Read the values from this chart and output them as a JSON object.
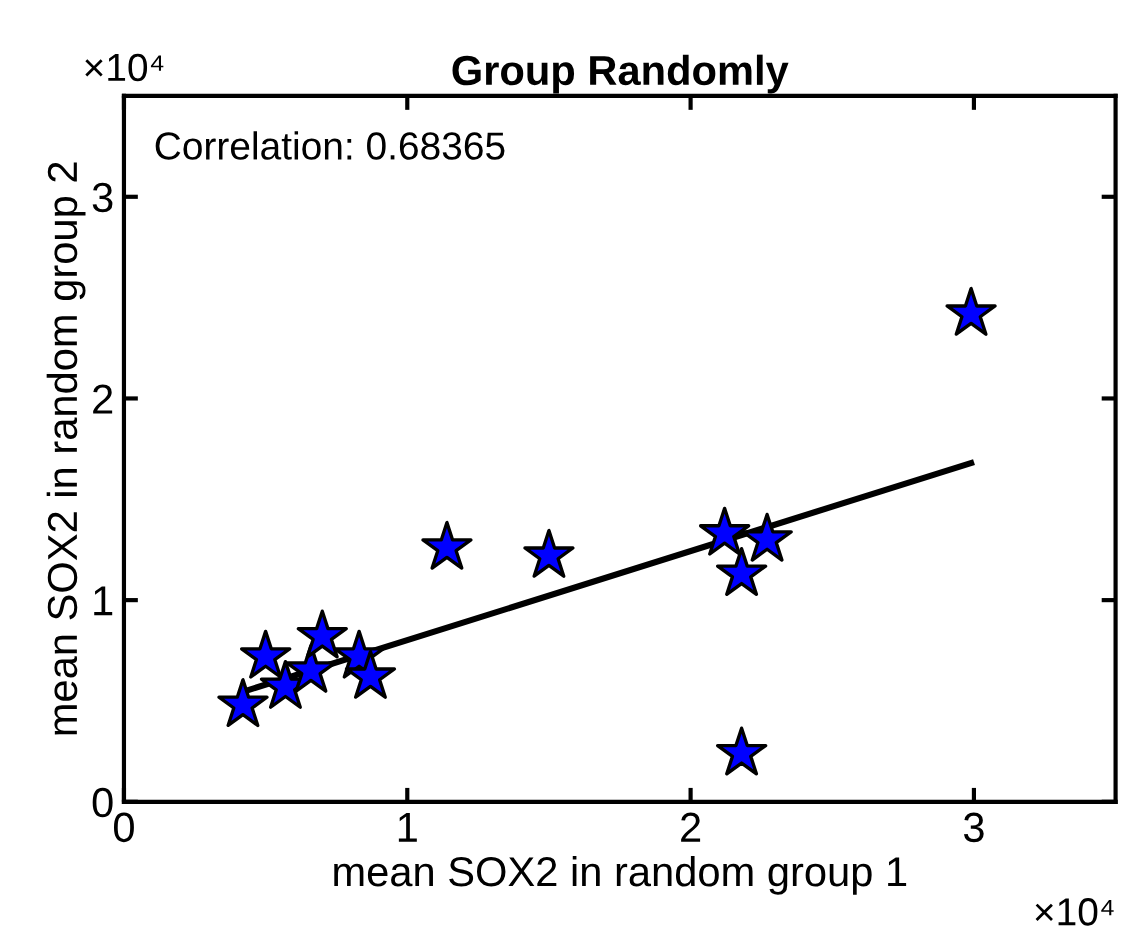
{
  "chart_data": {
    "type": "scatter",
    "title": "Group Randomly",
    "xlabel": "mean SOX2 in random group 1",
    "ylabel": "mean SOX2 in random group 2",
    "annotations": [
      "Correlation: 0.68365",
      "×10⁴",
      "×10⁴"
    ],
    "series": [
      {
        "color": "#0000ff",
        "marker": "star",
        "x": [
          0.42,
          0.5,
          0.57,
          0.66,
          0.7,
          0.83,
          0.87,
          1.14,
          1.5,
          2.12,
          2.18,
          2.27,
          2.18,
          2.99
        ],
        "values": [
          0.48,
          0.72,
          0.57,
          0.65,
          0.82,
          0.72,
          0.62,
          1.26,
          1.22,
          1.33,
          1.13,
          1.3,
          0.24,
          2.42
        ]
      },
      {
        "type": "line",
        "color": "#000000",
        "line_style": "solid",
        "x": [
          0.43,
          2.99
        ],
        "values": [
          0.55,
          1.68
        ]
      }
    ],
    "xlim": [
      0,
      3.5
    ],
    "ylim": [
      0,
      3.5
    ],
    "xticks": [
      0,
      1,
      2,
      3
    ],
    "yticks": [
      0,
      1,
      2,
      3
    ],
    "grid": false,
    "legend": false
  }
}
